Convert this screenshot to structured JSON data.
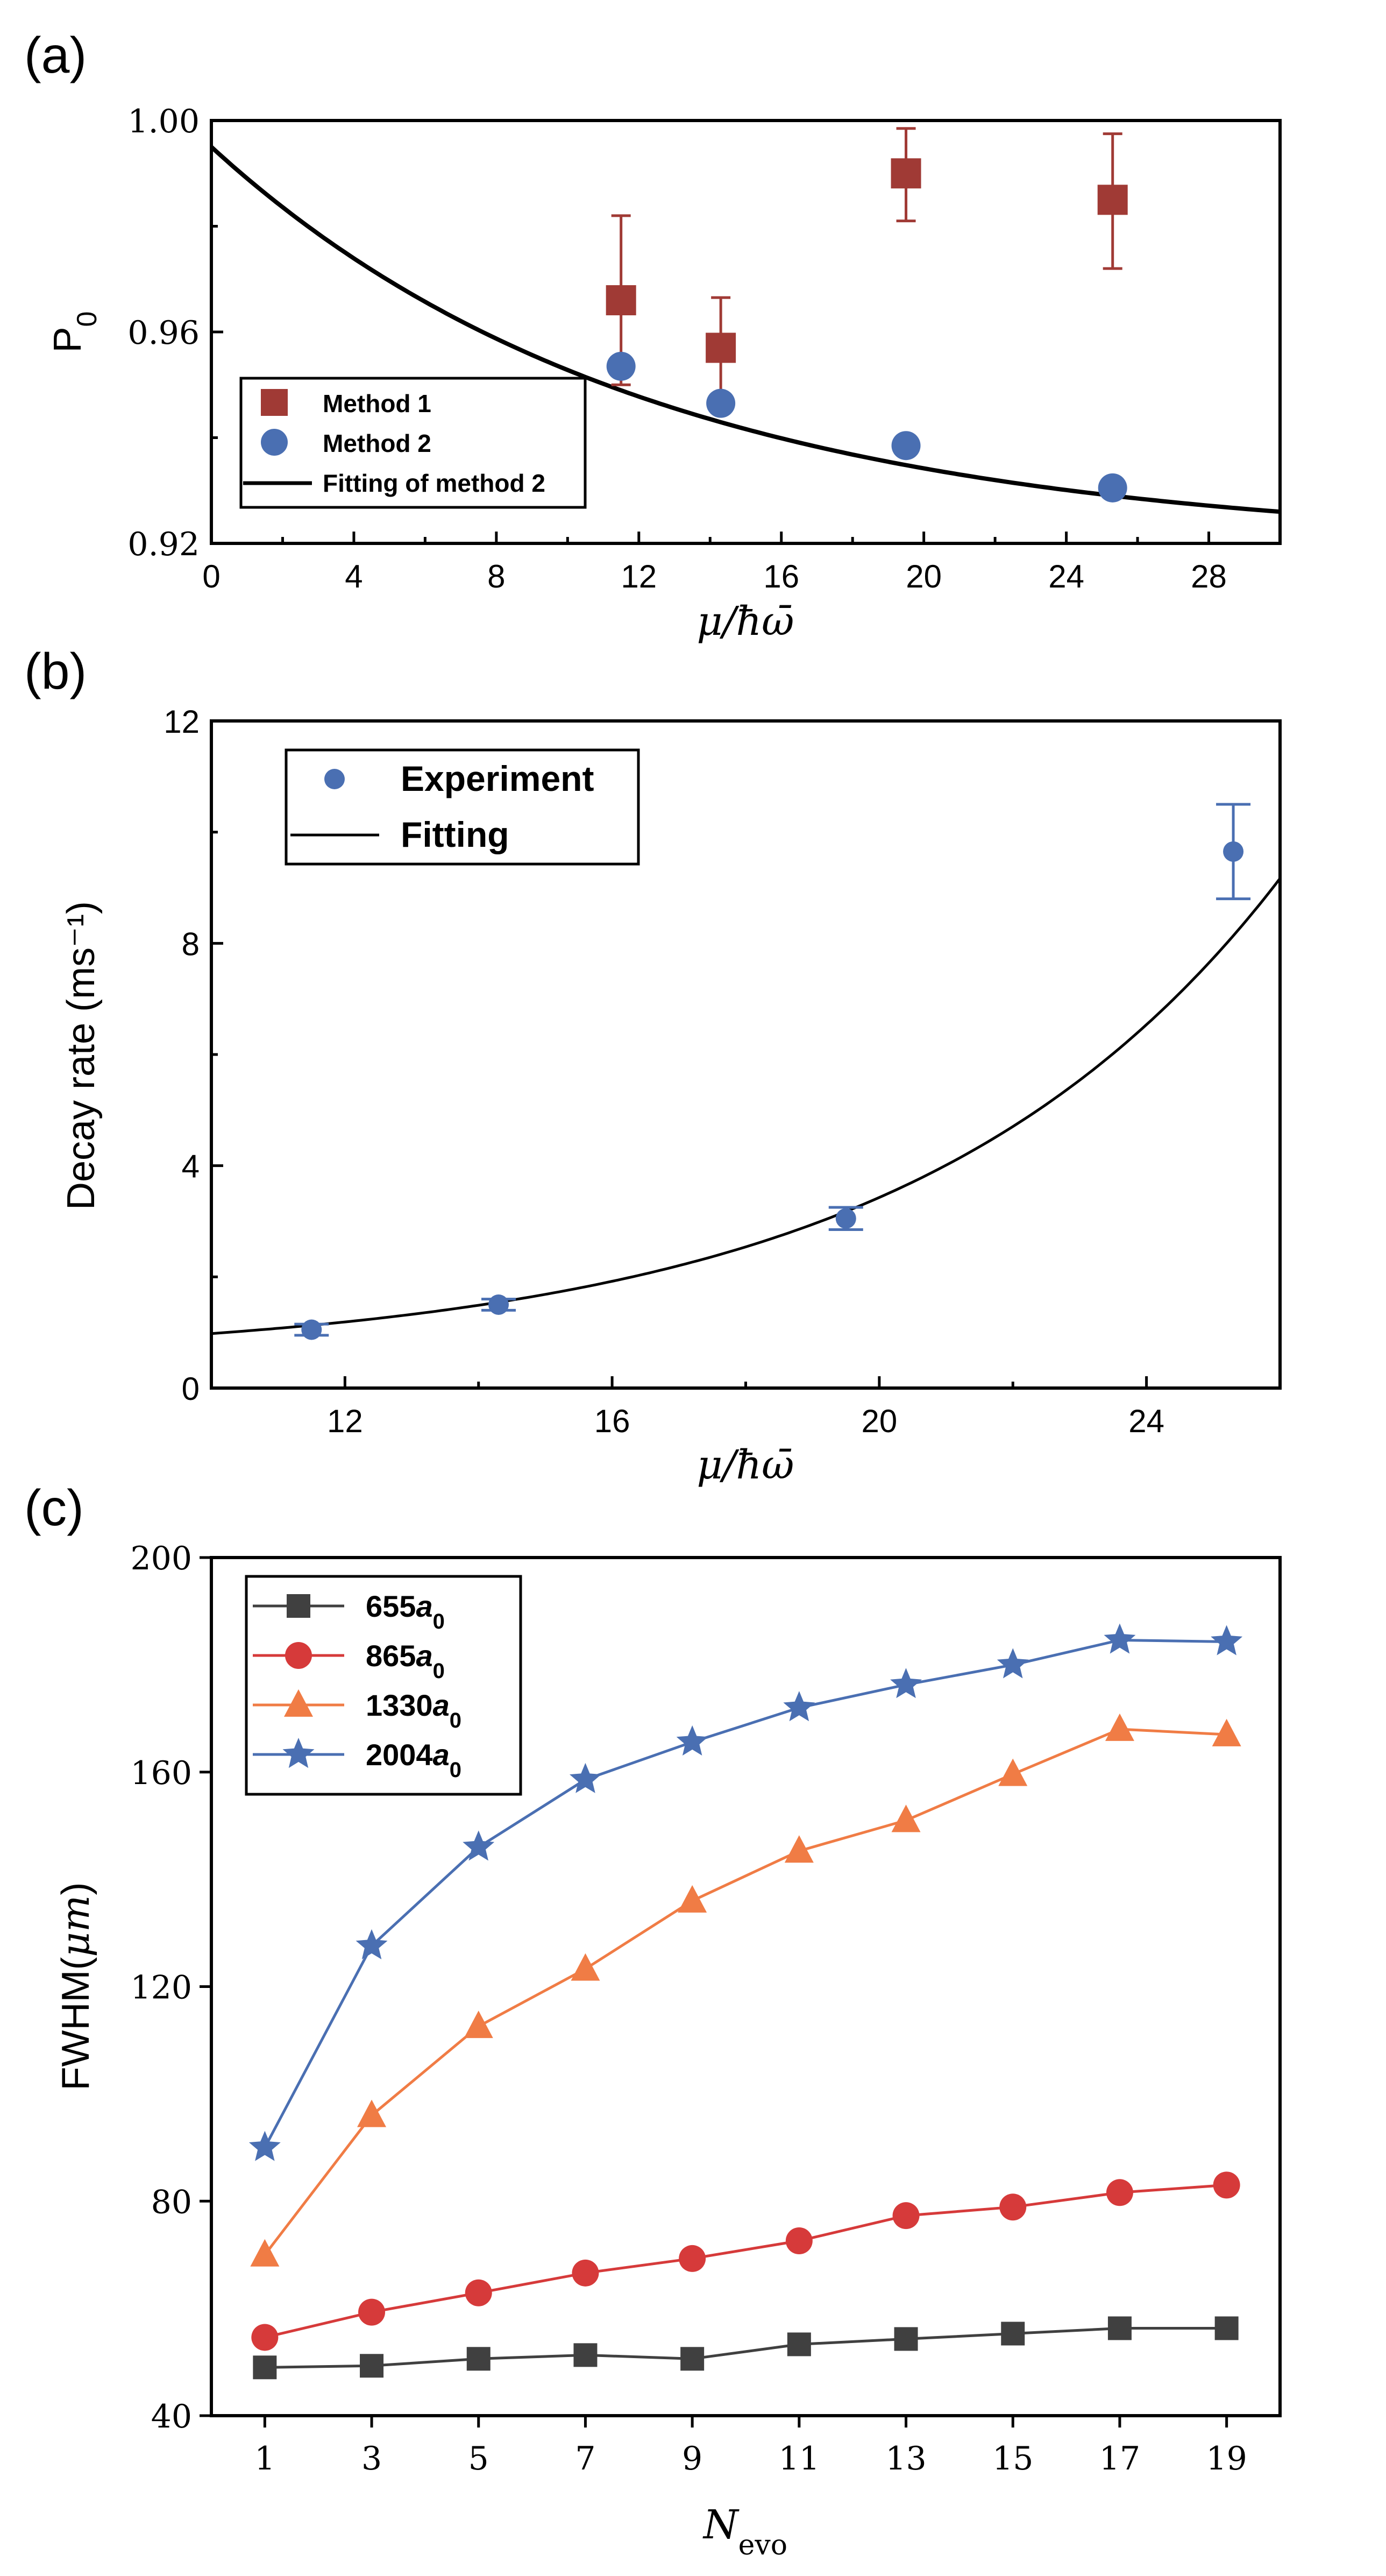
{
  "chart_data": [
    {
      "id": "a",
      "panel_label": "(a)",
      "type": "scatter",
      "title": "",
      "xlabel": "μ/ħω̄",
      "ylabel": "P0",
      "xlim": [
        0,
        30
      ],
      "ylim": [
        0.92,
        1.0
      ],
      "xticks": [
        0,
        4,
        8,
        12,
        16,
        20,
        24,
        28
      ],
      "yticks": [
        0.92,
        0.96,
        1.0
      ],
      "ytick_labels": [
        "0.92",
        "0.96",
        "1.00"
      ],
      "colors": {
        "method1": "#a03a35",
        "method2": "#4a6fb2",
        "fit": "#000000"
      },
      "series": [
        {
          "name": "Method 1",
          "marker": "square",
          "x": [
            11.5,
            14.3,
            19.5,
            25.3
          ],
          "y": [
            0.966,
            0.957,
            0.99,
            0.985
          ],
          "err_low": [
            0.016,
            0.0095,
            0.009,
            0.013
          ],
          "err_high": [
            0.016,
            0.0095,
            0.0085,
            0.0125
          ]
        },
        {
          "name": "Method 2",
          "marker": "circle",
          "x": [
            11.5,
            14.3,
            19.5,
            25.3
          ],
          "y": [
            0.9535,
            0.9465,
            0.9385,
            0.9305
          ]
        }
      ],
      "fit": {
        "name": "Fitting of method 2",
        "model": "a + b*exp(-x/t)",
        "a": 0.9195,
        "b": 0.0755,
        "t": 12.22
      },
      "legend": {
        "position": "bottom-left",
        "labels": [
          "Method 1",
          "Method 2",
          "Fitting of method 2"
        ]
      }
    },
    {
      "id": "b",
      "panel_label": "(b)",
      "type": "scatter",
      "title": "",
      "xlabel": "μ/ħω̄",
      "ylabel": "Decay rate (ms⁻¹)",
      "xlim": [
        10,
        26
      ],
      "ylim": [
        0,
        12
      ],
      "xticks": [
        12,
        16,
        20,
        24
      ],
      "yticks": [
        0,
        4,
        8,
        12
      ],
      "colors": {
        "experiment": "#4a6fb2",
        "fit": "#000000"
      },
      "series": [
        {
          "name": "Experiment",
          "marker": "circle",
          "x": [
            11.5,
            14.3,
            19.5,
            25.3
          ],
          "y": [
            1.05,
            1.5,
            3.05,
            9.65
          ],
          "err": [
            0.1,
            0.1,
            0.2,
            0.85
          ]
        }
      ],
      "fit": {
        "name": "Fitting",
        "model": "a + b*exp(x/t)",
        "a": 0.5,
        "b": 0.0787,
        "t": 5.53
      },
      "legend": {
        "position": "top-left",
        "labels": [
          "Experiment",
          "Fitting"
        ]
      }
    },
    {
      "id": "c",
      "panel_label": "(c)",
      "type": "line",
      "title": "",
      "xlabel": "N",
      "xlabel_sub": "evo",
      "ylabel": "FWHM(μm)",
      "xlim": [
        0,
        20
      ],
      "ylim": [
        40,
        200
      ],
      "x": [
        1,
        3,
        5,
        7,
        9,
        11,
        13,
        15,
        17,
        19
      ],
      "xticks": [
        1,
        3,
        5,
        7,
        9,
        11,
        13,
        15,
        17,
        19
      ],
      "yticks": [
        40,
        80,
        120,
        160,
        200
      ],
      "series": [
        {
          "name": "655a0",
          "label_main": "655",
          "label_sub": "0",
          "marker": "square",
          "color": "#404040",
          "values": [
            49,
            49.3,
            50.6,
            51.3,
            50.6,
            53.3,
            54.3,
            55.3,
            56.3,
            56.3
          ]
        },
        {
          "name": "865a0",
          "label_main": "865",
          "label_sub": "0",
          "marker": "circle",
          "color": "#d63a3a",
          "values": [
            54.6,
            59.3,
            62.9,
            66.6,
            69.3,
            72.6,
            77.3,
            78.9,
            81.6,
            83
          ]
        },
        {
          "name": "1330a0",
          "label_main": "1330",
          "label_sub": "0",
          "marker": "triangle",
          "color": "#f07c45",
          "values": [
            70,
            96,
            112.6,
            123.3,
            136,
            145.3,
            151,
            159.6,
            168,
            167
          ]
        },
        {
          "name": "2004a0",
          "label_main": "2004",
          "label_sub": "0",
          "marker": "star",
          "color": "#4a6fb2",
          "values": [
            90,
            127.6,
            146,
            158.6,
            165.6,
            172,
            176.3,
            180,
            184.6,
            184.3
          ]
        }
      ],
      "legend": {
        "position": "top-left"
      }
    }
  ]
}
